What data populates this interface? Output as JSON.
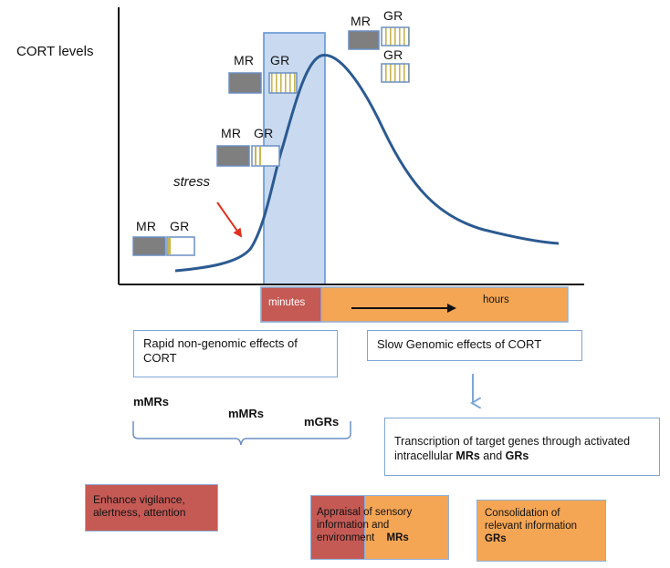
{
  "y_axis_label": "CORT levels",
  "stress_label": "stress",
  "receptors": {
    "mr": "MR",
    "gr": "GR"
  },
  "timeline": {
    "minutes": "minutes",
    "hours": "hours"
  },
  "rapid_effects": "Rapid non-genomic effects of CORT",
  "slow_effects": "Slow Genomic effects of CORT",
  "membrane_receptors": {
    "mmrs_1": "mMRs",
    "mmrs_2": "mMRs",
    "mgrs": "mGRs"
  },
  "transcription": {
    "text": "Transcription of target genes through activated intracellular",
    "mrs": "MRs",
    "and": "and",
    "grs": "GRs"
  },
  "enhance": "Enhance vigilance, alertness, attention",
  "appraisal": {
    "text": "Appraisal of sensory information and environment",
    "mrs": "MRs"
  },
  "consolidation": {
    "text": "Consolidation of relevant information",
    "grs": "GRs"
  },
  "colors": {
    "curve": "#2b5a91",
    "window_fill": "#c9daf0",
    "window_border": "#5b8fd0",
    "orange": "#f5a654",
    "red_box": "#c55a55",
    "mr_fill": "#7f7f7f",
    "gr_stripe": "#c8b54f",
    "stress_arrow": "#e0301e",
    "blue_arrow": "#7fa6d6"
  }
}
